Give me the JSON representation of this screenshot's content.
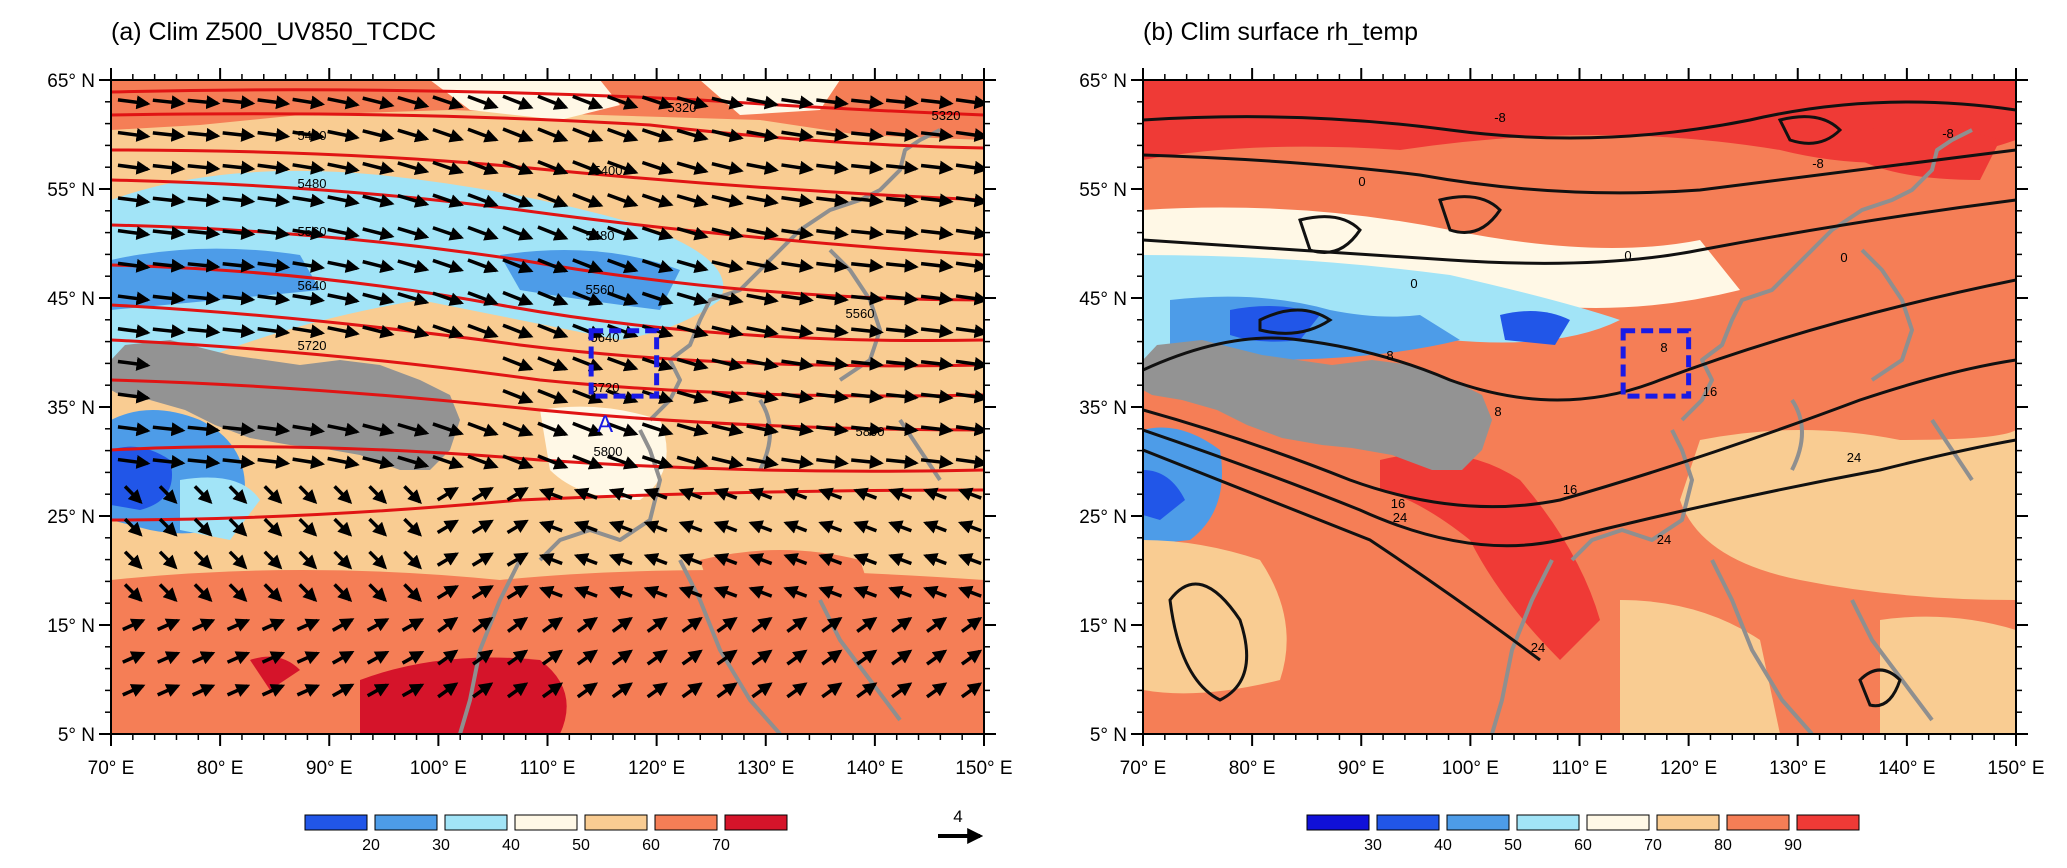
{
  "panels": [
    {
      "id": "a",
      "title": "(a) Clim Z500_UV850_TCDC",
      "fill_variable": "TCDC",
      "colorbar": {
        "ticks": [
          "20",
          "30",
          "40",
          "50",
          "60",
          "70"
        ],
        "colors": [
          "#2156e8",
          "#4d9ce8",
          "#a2e4f7",
          "#fff8e6",
          "#f9cc92",
          "#f57e56",
          "#d5142a"
        ]
      },
      "vector_reference": {
        "label": "4"
      },
      "region_box": {
        "label": "A",
        "lon": [
          114,
          120
        ],
        "lat": [
          36,
          42
        ],
        "color": "#1a1ae6"
      },
      "contour_labels": [
        "5320",
        "5400",
        "5480",
        "5560",
        "5640",
        "5720",
        "5800"
      ]
    },
    {
      "id": "b",
      "title": "(b) Clim surface rh_temp",
      "fill_variable": "rh",
      "colorbar": {
        "ticks": [
          "30",
          "40",
          "50",
          "60",
          "70",
          "80",
          "90"
        ],
        "colors": [
          "#1010d8",
          "#2156e8",
          "#4d9ce8",
          "#a2e4f7",
          "#fff8e6",
          "#f9cc92",
          "#f57e56",
          "#ef3a36"
        ]
      },
      "region_box": {
        "label": "",
        "lon": [
          114,
          120
        ],
        "lat": [
          36,
          42
        ],
        "color": "#1a1ae6"
      },
      "contour_labels": [
        "-8",
        "0",
        "8",
        "16",
        "24"
      ]
    }
  ],
  "axes": {
    "lon_ticks": [
      "70° E",
      "80° E",
      "90° E",
      "100° E",
      "110° E",
      "120° E",
      "130° E",
      "140° E",
      "150° E"
    ],
    "lat_ticks": [
      "65° N",
      "55° N",
      "45° N",
      "35° N",
      "25° N",
      "15° N",
      "5° N"
    ],
    "lon_values": [
      70,
      80,
      90,
      100,
      110,
      120,
      130,
      140,
      150
    ],
    "lat_values": [
      65,
      55,
      45,
      35,
      25,
      15,
      5
    ],
    "lon_range": [
      70,
      150
    ],
    "lat_range": [
      5,
      65
    ]
  },
  "colors": {
    "height_contour": "#e01414",
    "temp_contour": "#111111",
    "coastline": "#8f8f8f",
    "plateau_mask": "#939393",
    "vector": "#000000"
  }
}
